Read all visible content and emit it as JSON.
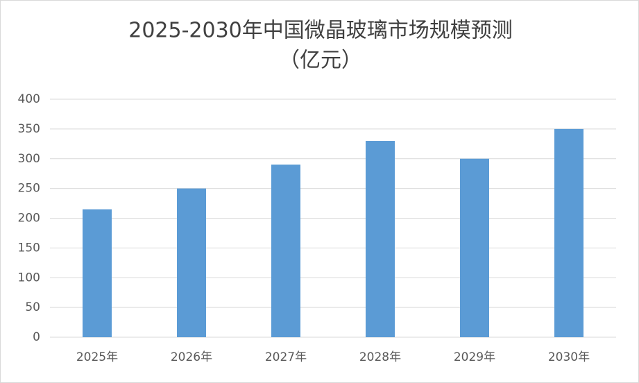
{
  "chart_data": {
    "type": "bar",
    "title": "2025-2030年中国微晶玻璃市场规模预测",
    "subtitle": "（亿元）",
    "categories": [
      "2025年",
      "2026年",
      "2027年",
      "2028年",
      "2029年",
      "2030年"
    ],
    "values": [
      215,
      250,
      290,
      330,
      300,
      350
    ],
    "color": "#5b9bd5",
    "ylim": [
      0,
      400
    ],
    "yticks": [
      0,
      50,
      100,
      150,
      200,
      250,
      300,
      350,
      400
    ],
    "grid": true
  }
}
